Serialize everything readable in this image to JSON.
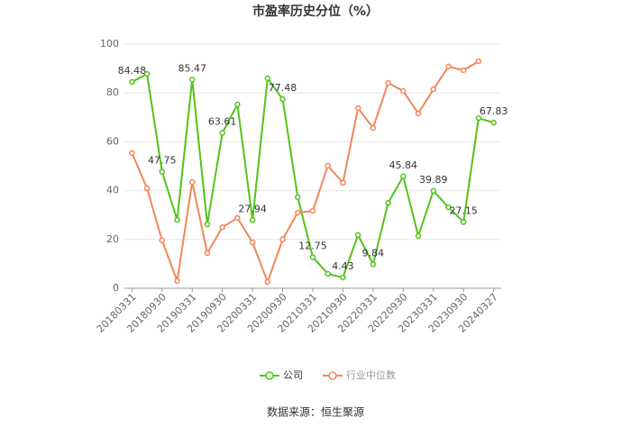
{
  "chart_data": {
    "type": "line",
    "title": "市盈率历史分位（%）",
    "categories": [
      "20180331",
      null,
      "20180930",
      null,
      "20190331",
      null,
      "20190930",
      null,
      "20200331",
      null,
      "20200930",
      null,
      "20210331",
      null,
      "20210930",
      null,
      "20220331",
      null,
      "20220930",
      null,
      "20230331",
      null,
      "20230930",
      null,
      "20240327"
    ],
    "series": [
      {
        "name": "公司",
        "color": "#52c41a",
        "values": [
          84.48,
          87.8,
          47.75,
          28,
          85.47,
          26.2,
          63.61,
          75.3,
          27.94,
          86,
          77.48,
          37.3,
          12.75,
          5.9,
          4.43,
          21.8,
          9.84,
          35,
          45.84,
          21.4,
          39.89,
          33.2,
          27.15,
          69.7,
          67.83
        ],
        "value_labels": [
          "84.48",
          null,
          "47.75",
          null,
          "85.47",
          null,
          "63.61",
          null,
          "27.94",
          null,
          "77.48",
          null,
          "12.75",
          null,
          "4.43",
          null,
          "9.84",
          null,
          "45.84",
          null,
          "39.89",
          null,
          "27.15",
          null,
          "67.83"
        ]
      },
      {
        "name": "行业中位数",
        "color": "#f0875a",
        "values": [
          55.4,
          41,
          19.6,
          3,
          43.5,
          14.4,
          25,
          28.8,
          18.8,
          2.6,
          20,
          31,
          31.7,
          50.2,
          43.2,
          73.8,
          65.7,
          84.1,
          80.8,
          71.6,
          81.5,
          90.8,
          89.3,
          93,
          null
        ]
      }
    ],
    "ylim": [
      0,
      100
    ],
    "yticks": [
      0,
      20,
      40,
      60,
      80,
      100
    ],
    "grid": true,
    "legend": "bottom",
    "source": "数据来源：恒生聚源"
  }
}
